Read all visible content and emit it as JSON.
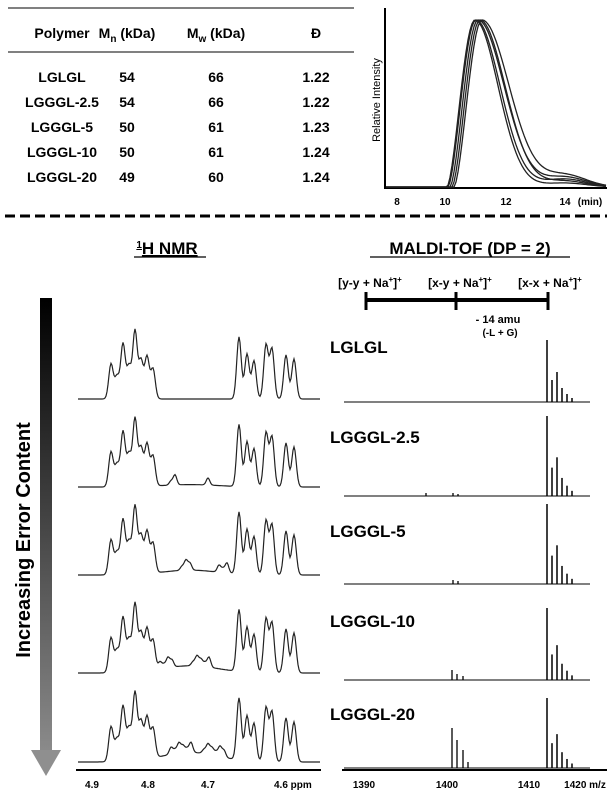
{
  "table": {
    "headers": {
      "polymer": "Polymer",
      "mn_main": "M",
      "mn_sub": "n",
      "mn_unit": " (kDa)",
      "mw_main": "M",
      "mw_sub": "w",
      "mw_unit": " (kDa)",
      "dispersity": "Đ"
    },
    "rows": [
      {
        "polymer": "LGLGL",
        "mn": "54",
        "mw": "66",
        "d": "1.22"
      },
      {
        "polymer": "LGGGL-2.5",
        "mn": "54",
        "mw": "66",
        "d": "1.22"
      },
      {
        "polymer": "LGGGL-5",
        "mn": "50",
        "mw": "61",
        "d": "1.23"
      },
      {
        "polymer": "LGGGL-10",
        "mn": "50",
        "mw": "61",
        "d": "1.24"
      },
      {
        "polymer": "LGGGL-20",
        "mn": "49",
        "mw": "60",
        "d": "1.24"
      }
    ]
  },
  "gpc": {
    "ylabel": "Relative Intensity",
    "ticks": [
      "8",
      "10",
      "12",
      "14"
    ],
    "unit": "(min)"
  },
  "nmr": {
    "title_sup": "1",
    "title": "H NMR",
    "ticks": [
      "4.9",
      "4.8",
      "4.7",
      "4.6 ppm"
    ],
    "arrow_label": "Increasing Error Content"
  },
  "maldi": {
    "title": "MALDI-TOF (DP = 2)",
    "bracket_labels": [
      "[y-y + Na",
      "]",
      "[x-y + Na",
      "]",
      "[x-x + Na",
      "]"
    ],
    "bracket_sup": "+",
    "delta_line1": "- 14 amu",
    "delta_line2": "(-L + G)",
    "ticks": [
      "1390",
      "1400",
      "1410",
      "1420 m/z"
    ],
    "sample_labels": [
      "LGLGL",
      "LGGGL-2.5",
      "LGGGL-5",
      "LGGGL-10",
      "LGGGL-20"
    ]
  }
}
